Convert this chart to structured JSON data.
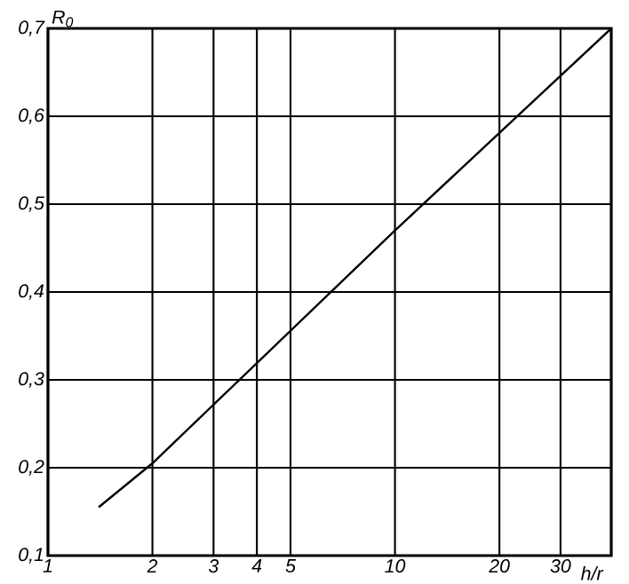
{
  "chart_data": {
    "type": "line",
    "xlabel": "h/r",
    "ylabel": "R$_{0}$",
    "log": "x",
    "grid": true,
    "x": [
      1.4,
      2,
      10,
      42
    ],
    "series": [
      {
        "color": "#000000",
        "values": [
          0.155,
          0.205,
          0.47,
          0.7
        ]
      }
    ],
    "xlim": [
      1,
      42
    ],
    "ylim": [
      0.1,
      0.7
    ],
    "xticks": [
      1,
      2,
      3,
      4,
      5,
      10,
      20,
      30
    ],
    "yticks": [
      {
        "value": 0.1,
        "label": "0,1"
      },
      {
        "value": 0.2,
        "label": "0,2"
      },
      {
        "value": 0.3,
        "label": "0,3"
      },
      {
        "value": 0.4,
        "label": "0,4"
      },
      {
        "value": 0.5,
        "label": "0,5"
      },
      {
        "value": 0.6,
        "label": "0,6"
      },
      {
        "value": 0.7,
        "label": "0,7"
      }
    ]
  }
}
